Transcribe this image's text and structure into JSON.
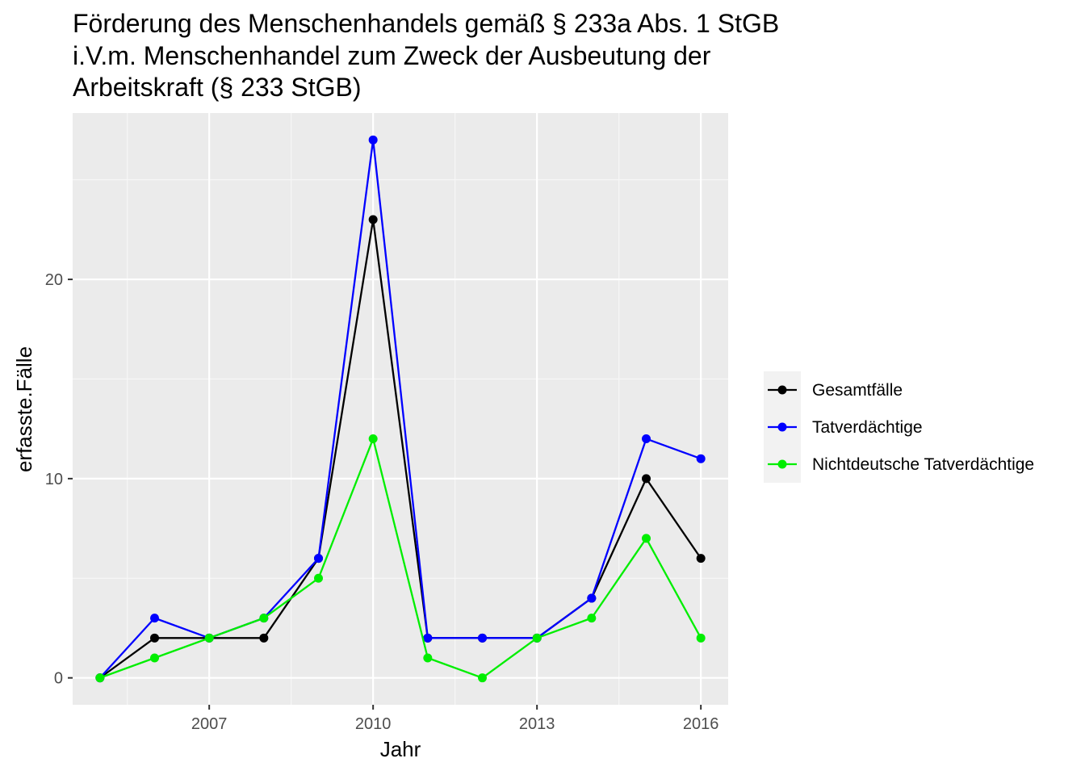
{
  "chart_data": {
    "type": "line",
    "title_lines": [
      "Förderung des Menschenhandels gemäß § 233a Abs. 1 StGB",
      "i.V.m. Menschenhandel zum Zweck der Ausbeutung der",
      "Arbeitskraft (§ 233 StGB)"
    ],
    "xlabel": "Jahr",
    "ylabel": "erfasste.Fälle",
    "x": [
      2005,
      2006,
      2007,
      2008,
      2009,
      2010,
      2011,
      2012,
      2013,
      2014,
      2015,
      2016
    ],
    "xlim": [
      2004.5,
      2016.5
    ],
    "ylim": [
      -1.35,
      28.35
    ],
    "x_ticks": [
      2007,
      2010,
      2013,
      2016
    ],
    "x_tick_labels": [
      "2007",
      "2010",
      "2013",
      "2016"
    ],
    "y_ticks": [
      0,
      10,
      20
    ],
    "y_tick_labels": [
      "0",
      "10",
      "20"
    ],
    "grid": true,
    "legend_position": "right",
    "colors": {
      "panel_background": "#ebebeb",
      "grid_major": "#ffffff",
      "grid_minor": "#f7f7f7",
      "legend_key_background": "#f2f2f2"
    },
    "series": [
      {
        "name": "Gesamtfälle",
        "color": "#000000",
        "values": [
          0,
          2,
          2,
          2,
          6,
          23,
          2,
          2,
          2,
          4,
          10,
          6
        ]
      },
      {
        "name": "Tatverdächtige",
        "color": "#0000ff",
        "values": [
          0,
          3,
          2,
          3,
          6,
          27,
          2,
          2,
          2,
          4,
          12,
          11
        ]
      },
      {
        "name": "Nichtdeutsche Tatverdächtige",
        "color": "#00ee00",
        "values": [
          0,
          1,
          2,
          3,
          5,
          12,
          1,
          0,
          2,
          3,
          7,
          2
        ]
      }
    ]
  }
}
